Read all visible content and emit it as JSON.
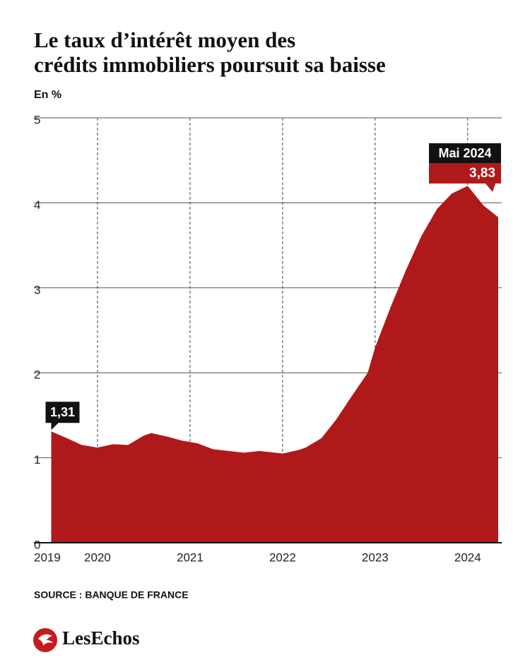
{
  "chart_data": {
    "type": "area",
    "title": "Le taux d’intérêt moyen des crédits immobiliers poursuit sa baisse",
    "y_label": "En %",
    "x": [
      2019.5,
      2019.67,
      2019.83,
      2020.0,
      2020.17,
      2020.33,
      2020.5,
      2020.58,
      2020.75,
      2020.92,
      2021.08,
      2021.25,
      2021.42,
      2021.58,
      2021.75,
      2021.92,
      2022.0,
      2022.17,
      2022.25,
      2022.42,
      2022.58,
      2022.75,
      2022.92,
      2023.0,
      2023.17,
      2023.33,
      2023.5,
      2023.67,
      2023.83,
      2024.0,
      2024.17,
      2024.33
    ],
    "values": [
      1.31,
      1.23,
      1.15,
      1.12,
      1.16,
      1.15,
      1.26,
      1.29,
      1.25,
      1.2,
      1.17,
      1.1,
      1.08,
      1.06,
      1.08,
      1.06,
      1.05,
      1.09,
      1.12,
      1.23,
      1.45,
      1.73,
      2.0,
      2.3,
      2.78,
      3.2,
      3.61,
      3.93,
      4.11,
      4.2,
      3.97,
      3.83
    ],
    "value_labels": [
      "1,31",
      null,
      null,
      null,
      null,
      null,
      null,
      null,
      null,
      null,
      null,
      null,
      null,
      null,
      null,
      null,
      null,
      null,
      null,
      null,
      null,
      null,
      null,
      null,
      null,
      null,
      null,
      null,
      null,
      null,
      null,
      "3,83"
    ],
    "annotation": "Mai 2024",
    "color": "#b0191a",
    "xlim": [
      2019.5,
      2024.33
    ],
    "xticks": [
      {
        "value": 2019.5,
        "label": "2019"
      },
      2020,
      2021,
      2022,
      2023,
      2024
    ],
    "ylim": [
      0,
      5
    ],
    "yticks": [
      0,
      1,
      2,
      3,
      4,
      5
    ],
    "grid": true,
    "source": "SOURCE : BANQUE DE FRANCE",
    "brand": "LesEchos"
  }
}
